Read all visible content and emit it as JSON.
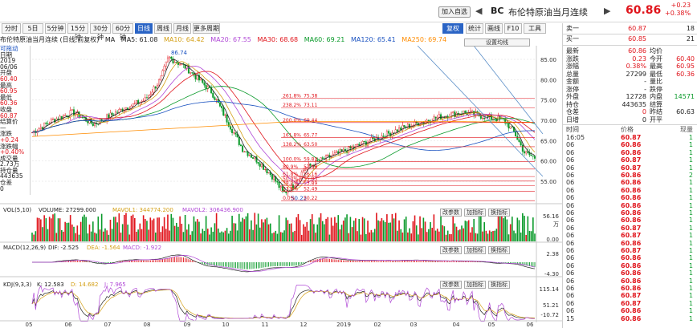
{
  "header": {
    "add_label": "加入自选",
    "nav_left": "◀",
    "code": "BC",
    "name": "布伦特原油当月连续",
    "nav_right": "▶",
    "price": "60.86",
    "change": "+0.23",
    "change_pct": "+0.38%"
  },
  "periods": [
    "分时",
    "5日",
    "5分钟",
    "15分钟",
    "30分钟",
    "60分钟",
    "日线",
    "周线",
    "月线",
    "更多周期"
  ],
  "active_period": "日线",
  "toolbar_right": {
    "main_chart": "复权",
    "stats": "统计",
    "draw": "画线",
    "f10": "F10",
    "tools": "工具"
  },
  "title": {
    "instrument": "布伦特原油当月连续 (日线,前复权)",
    "ma": "MA",
    "ma5": "MA5: 61.08",
    "ma10": "MA10: 64.42",
    "ma20": "MA20: 67.55",
    "ma30": "MA30: 68.68",
    "ma60": "MA60: 69.21",
    "ma120": "MA120: 65.41",
    "ma250": "MA250: 69.74"
  },
  "settings_label": "设置均线",
  "info": {
    "move": "可拖动",
    "date_label": "日期",
    "date1": "2019",
    "date2": "06/06",
    "open_label": "开盘",
    "open": "60.40",
    "high_label": "最高",
    "high": "60.95",
    "low_label": "最低",
    "low": "60.36",
    "close_label": "收盘",
    "close": "60.87",
    "settle_label": "结算价",
    "settle": "—",
    "chg_label": "涨跌",
    "chg": "+0.24",
    "pct_label": "涨跌幅",
    "pct": "+0.40%",
    "vol_label": "成交量",
    "vol": "2.73万",
    "oi_label": "持仓量",
    "oi": "443635",
    "oichg_label": "仓差",
    "oichg": "0"
  },
  "price_axis": [
    "85.00",
    "80.00",
    "75.00",
    "70.00",
    "65.00",
    "60.00",
    "55.00"
  ],
  "high_mark": "86.74",
  "low_mark": "50.22",
  "fib": [
    {
      "ratio": "261.8%",
      "value": "75.38"
    },
    {
      "ratio": "238.2%",
      "value": "73.11"
    },
    {
      "ratio": "200.0%",
      "value": "69.44"
    },
    {
      "ratio": "161.8%",
      "value": "65.77"
    },
    {
      "ratio": "138.2%",
      "value": "63.50"
    },
    {
      "ratio": "100.0%",
      "value": "59.83"
    },
    {
      "ratio": "80.9%",
      "value": "57.99"
    },
    {
      "ratio": "61.8%",
      "value": "56.16"
    },
    {
      "ratio": "50.0%",
      "value": "55.03"
    },
    {
      "ratio": "38.2%",
      "value": "53.89"
    },
    {
      "ratio": "23.6%",
      "value": "52.49"
    },
    {
      "ratio": "0.0%",
      "value": "50.22"
    }
  ],
  "vol_panel": {
    "title": "VOL(5,10)",
    "vol": "VOLUME: 27299.000",
    "ma1": "MAVOL1: 344774.200",
    "ma2": "MAVOL2: 306436.900",
    "axis_top": "56.16",
    "axis_bottom": "0.00",
    "unit": "万",
    "btn1": "改参数",
    "btn2": "加指标",
    "btn3": "换指标"
  },
  "macd_panel": {
    "title": "MACD(12,26,9)",
    "dif": "DIF: -2.525",
    "dea": "DEA: -1.564",
    "macd": "MACD: -1.922",
    "axis_top": "2.38",
    "axis_bottom": "-4.30",
    "btn1": "改参数",
    "btn2": "加指标",
    "btn3": "换指标"
  },
  "kdj_panel": {
    "title": "KDJ(9,3,3)",
    "k": "K: 12.583",
    "d": "D: 14.682",
    "j": "J: 7.965",
    "axis_top": "115.14",
    "axis_mid": "51.21",
    "axis_bottom": "-10.72",
    "btn1": "改参数",
    "btn2": "加指标",
    "btn3": "换指标"
  },
  "x_axis": [
    "05",
    "06",
    "07",
    "08",
    "09",
    "10",
    "11",
    "12",
    "2019",
    "02",
    "03",
    "04",
    "05",
    "06"
  ],
  "quote": {
    "sell_label": "卖一",
    "sell": "60.87",
    "sell_vol": "18",
    "buy_label": "买一",
    "buy": "60.85",
    "buy_vol": "21",
    "rows": [
      {
        "l": "最新",
        "v": "60.86",
        "l2": "均价",
        "v2": ""
      },
      {
        "l": "涨跌",
        "v": "0.23",
        "l2": "今开",
        "v2": "60.40"
      },
      {
        "l": "涨幅",
        "v": "0.38%",
        "l2": "最高",
        "v2": "60.95"
      },
      {
        "l": "总量",
        "v": "27299",
        "l2": "最低",
        "v2": "60.36"
      },
      {
        "l": "金额",
        "v": "-",
        "l2": "量比",
        "v2": ""
      },
      {
        "l": "涨停",
        "v": "-",
        "l2": "跌停",
        "v2": ""
      },
      {
        "l": "外盘",
        "v": "12728",
        "l2": "内盘",
        "v2": "14571"
      },
      {
        "l": "持仓",
        "v": "443635",
        "l2": "结算",
        "v2": ""
      },
      {
        "l": "仓差",
        "v": "0",
        "l2": "昨结",
        "v2": "60.63"
      },
      {
        "l": "日增",
        "v": "0",
        "l2": "开平",
        "v2": ""
      }
    ]
  },
  "ticks_header": {
    "time": "时间",
    "price": "价格",
    "vol": "现量"
  },
  "ticks": [
    [
      "16:05",
      "60.87",
      "1"
    ],
    [
      "06",
      "60.86",
      "1"
    ],
    [
      "06",
      "60.86",
      "1"
    ],
    [
      "06",
      "60.87",
      "1"
    ],
    [
      "06",
      "60.87",
      "1"
    ],
    [
      "06",
      "60.86",
      "2"
    ],
    [
      "06",
      "60.86",
      "1"
    ],
    [
      "06",
      "60.86",
      "1"
    ],
    [
      "06",
      "60.86",
      "1"
    ],
    [
      "06",
      "60.86",
      "1"
    ],
    [
      "06",
      "60.86",
      "1"
    ],
    [
      "06",
      "60.86",
      "1"
    ],
    [
      "06",
      "60.87",
      "1"
    ],
    [
      "06",
      "60.87",
      "1"
    ],
    [
      "06",
      "60.86",
      "1"
    ],
    [
      "06",
      "60.87",
      "1"
    ],
    [
      "06",
      "60.86",
      "1"
    ],
    [
      "06",
      "60.86",
      "1"
    ],
    [
      "06",
      "60.86",
      "1"
    ],
    [
      "06",
      "60.86",
      "1"
    ],
    [
      "06",
      "60.86",
      "1"
    ],
    [
      "06",
      "60.87",
      "1"
    ],
    [
      "06",
      "60.87",
      "1"
    ],
    [
      "06",
      "60.86",
      "1"
    ],
    [
      "15",
      "60.86",
      "1"
    ]
  ]
}
